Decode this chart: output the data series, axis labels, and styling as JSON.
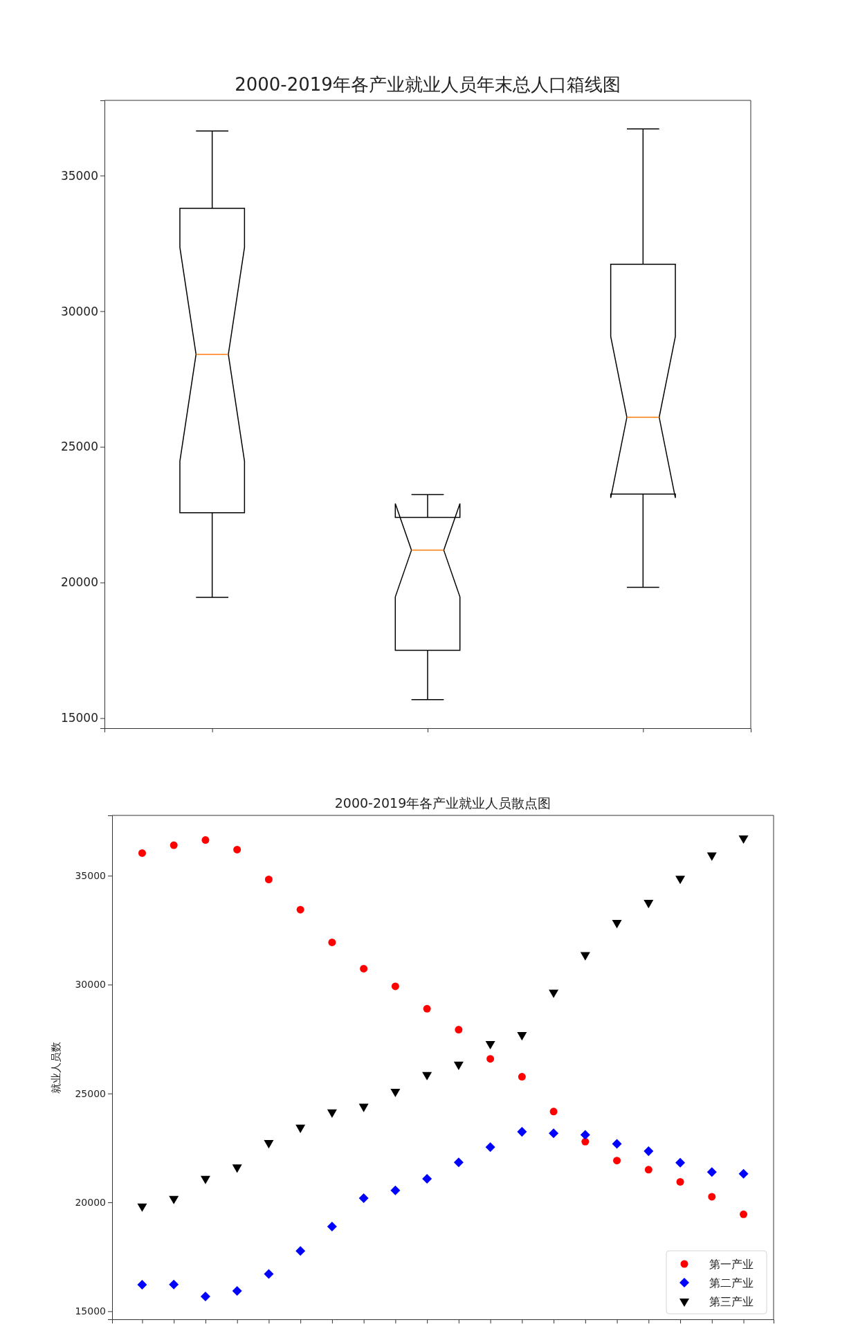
{
  "chart_data": [
    {
      "type": "box",
      "title": "2000-2019年各产业就业人员年末总人口箱线图",
      "categories": [
        null,
        null,
        null
      ],
      "boxes": [
        {
          "low": 19450,
          "q1": 22570,
          "median": 28410,
          "q3": 33790,
          "high": 36640
        },
        {
          "low": 15680,
          "q1": 17500,
          "median": 21190,
          "q3": 22400,
          "high": 23240
        },
        {
          "low": 19820,
          "q1": 23260,
          "median": 26090,
          "q3": 31730,
          "high": 36720
        }
      ],
      "ylim": [
        14630,
        37770
      ],
      "yticks": [
        15000,
        20000,
        25000,
        30000,
        35000
      ],
      "tick_labels": "y"
    },
    {
      "type": "scatter",
      "title": "2000-2019年各产业就业人员散点图",
      "ylabel": "就业人员数",
      "categories": [
        null,
        null,
        null,
        null,
        null,
        null,
        null,
        null,
        null,
        null,
        null,
        null,
        null,
        null,
        null,
        null,
        null,
        null,
        null,
        null
      ],
      "series": [
        {
          "name": "第一产业",
          "color": "#ff0000",
          "marker": "circle",
          "values": [
            36040,
            36400,
            36640,
            36200,
            34830,
            33440,
            31940,
            30730,
            29920,
            28890,
            27930,
            26590,
            25770,
            24170,
            22790,
            21920,
            21500,
            20940,
            20260,
            19450
          ]
        },
        {
          "name": "第二产业",
          "color": "#0000ff",
          "marker": "diamond",
          "values": [
            16220,
            16230,
            15680,
            15930,
            16710,
            17770,
            18890,
            20190,
            20550,
            21080,
            21840,
            22540,
            23240,
            23170,
            23100,
            22690,
            22350,
            21820,
            21390,
            21310
          ]
        },
        {
          "name": "第三产业",
          "color": "#000000",
          "marker": "triangle",
          "values": [
            19820,
            20170,
            21090,
            21610,
            22730,
            23440,
            24140,
            24400,
            25090,
            25860,
            26330,
            27280,
            27690,
            29640,
            31360,
            32840,
            33760,
            34870,
            35940,
            36720
          ]
        }
      ],
      "ylim": [
        14630,
        37770
      ],
      "yticks": [
        15000,
        20000,
        25000,
        30000,
        35000
      ],
      "tick_labels": "y",
      "legend": "bottom right"
    }
  ]
}
